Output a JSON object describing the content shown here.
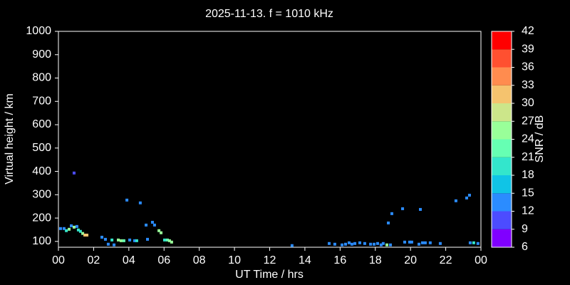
{
  "chart_data": {
    "type": "scatter",
    "title": "2025-11-13. f = 1010 kHz",
    "xlabel": "UT Time / hrs",
    "ylabel": "Virtual height / km",
    "xlim": [
      0,
      24
    ],
    "xticks": [
      {
        "value": 0,
        "label": "00"
      },
      {
        "value": 2,
        "label": "02"
      },
      {
        "value": 4,
        "label": "04"
      },
      {
        "value": 6,
        "label": "06"
      },
      {
        "value": 8,
        "label": "08"
      },
      10,
      12,
      14,
      16,
      18,
      20,
      22,
      {
        "value": 24,
        "label": "00"
      }
    ],
    "ylim": [
      75,
      1000
    ],
    "yticks": [
      100,
      200,
      300,
      400,
      500,
      600,
      700,
      800,
      900,
      1000
    ],
    "x": [
      0.12,
      0.32,
      0.45,
      0.61,
      0.73,
      0.89,
      1.05,
      1.13,
      1.25,
      1.38,
      1.5,
      1.62,
      0.89,
      2.47,
      2.67,
      2.83,
      3.04,
      3.16,
      3.4,
      3.56,
      3.72,
      4.05,
      4.33,
      4.45,
      3.89,
      4.65,
      4.98,
      5.06,
      5.34,
      5.46,
      5.71,
      5.83,
      6.03,
      6.19,
      6.31,
      6.43,
      13.27,
      15.38,
      15.7,
      16.11,
      16.31,
      16.51,
      16.67,
      16.84,
      17.12,
      17.4,
      17.73,
      17.93,
      18.13,
      18.33,
      18.45,
      18.66,
      18.86,
      18.74,
      18.94,
      19.55,
      20.56,
      19.67,
      19.95,
      20.07,
      20.48,
      20.68,
      20.84,
      21.12,
      21.69,
      22.58,
      23.19,
      23.35,
      23.39,
      23.59,
      23.83
    ],
    "values": [
      155,
      155,
      146,
      152,
      167,
      161,
      164,
      149,
      143,
      134,
      127,
      127,
      393,
      118,
      109,
      88,
      106,
      85,
      106,
      103,
      103,
      106,
      103,
      103,
      277,
      265,
      170,
      109,
      182,
      170,
      146,
      137,
      106,
      106,
      103,
      97,
      82,
      91,
      88,
      85,
      88,
      94,
      88,
      91,
      94,
      91,
      88,
      88,
      91,
      85,
      91,
      85,
      85,
      179,
      219,
      240,
      237,
      97,
      97,
      97,
      88,
      94,
      94,
      94,
      91,
      274,
      286,
      298,
      94,
      94,
      91
    ],
    "snr": [
      14,
      13,
      18,
      24,
      13,
      25,
      13,
      19,
      18,
      25,
      31,
      31,
      11,
      13,
      13,
      13,
      19,
      13,
      25,
      25,
      21,
      13,
      13,
      19,
      13,
      12,
      12,
      13,
      12,
      12,
      24,
      25,
      20,
      21,
      25,
      25,
      12,
      13,
      13,
      12,
      13,
      13,
      13,
      13,
      13,
      12,
      13,
      13,
      12,
      13,
      13,
      24,
      14,
      12,
      13,
      12,
      12,
      13,
      13,
      13,
      12,
      12,
      12,
      12,
      12,
      12,
      12,
      12,
      13,
      19,
      13
    ],
    "colorbar": {
      "label": "SNR / dB",
      "lim": [
        6,
        42
      ],
      "ticks": [
        6,
        9,
        12,
        15,
        18,
        21,
        24,
        27,
        30,
        33,
        36,
        39,
        42
      ],
      "colors": [
        "#8000ff",
        "#4c4cff",
        "#2b8cff",
        "#10c4e6",
        "#33e6cc",
        "#66ffb3",
        "#99ff99",
        "#cce68a",
        "#f5c36e",
        "#ff8c4f",
        "#ff5030",
        "#ff0000"
      ]
    }
  }
}
